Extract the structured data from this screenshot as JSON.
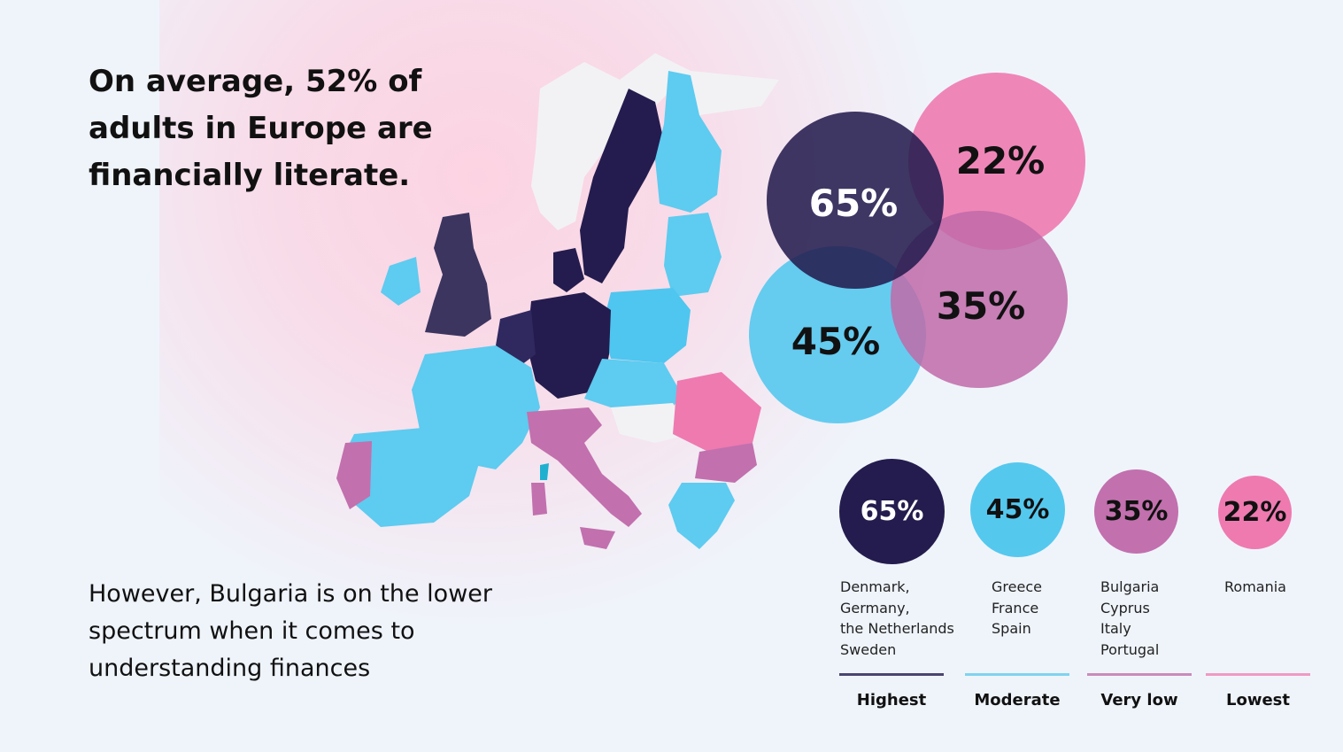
{
  "headline": "On average, 52% of adults in Europe are financially literate.",
  "subtext": "However, Bulgaria is on the lower spectrum when it comes to understanding finances",
  "colors": {
    "highest": "#241c4e",
    "moderate": "#55c8ee",
    "very_low": "#c270ae",
    "lowest": "#ee7ab0",
    "neutral": "#efeff2"
  },
  "venn": {
    "highest": "65%",
    "lowest": "22%",
    "very_low": "35%",
    "moderate": "45%"
  },
  "legend": [
    {
      "value": "65%",
      "countries": [
        "Denmark,",
        "Germany,",
        "the Netherlands",
        "Sweden"
      ],
      "level": "Highest"
    },
    {
      "value": "45%",
      "countries": [
        "Greece",
        "France",
        "Spain"
      ],
      "level": "Moderate"
    },
    {
      "value": "35%",
      "countries": [
        "Bulgaria",
        "Cyprus",
        "Italy",
        "Portugal"
      ],
      "level": "Very low"
    },
    {
      "value": "22%",
      "countries": [
        "Romania"
      ],
      "level": "Lowest"
    }
  ]
}
